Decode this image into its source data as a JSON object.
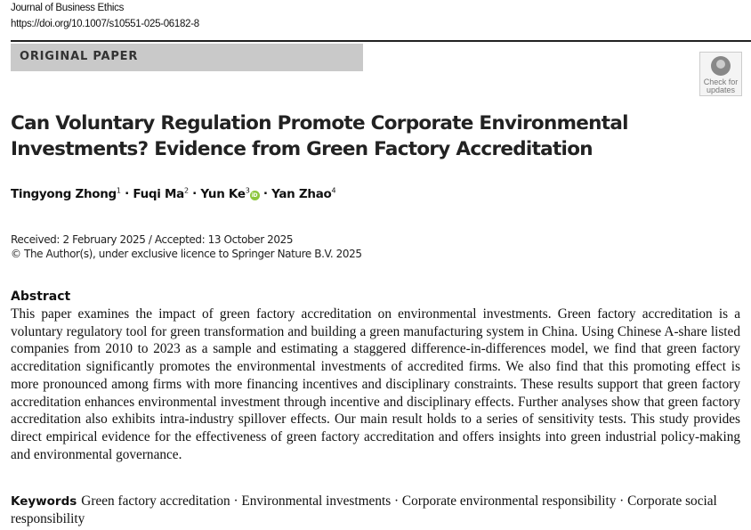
{
  "header": {
    "journal": "Journal of Business Ethics",
    "doi": "https://doi.org/10.1007/s10551-025-06182-8"
  },
  "badge": "ORIGINAL PAPER",
  "check_updates": {
    "line1": "Check for",
    "line2": "updates",
    "icon": "check-for-updates-icon"
  },
  "title_line1": "Can Voluntary Regulation Promote Corporate Environmental",
  "title_line2": "Investments? Evidence from Green Factory Accreditation",
  "authors": [
    {
      "name": "Tingyong Zhong",
      "aff": "1"
    },
    {
      "name": "Fuqi Ma",
      "aff": "2"
    },
    {
      "name": "Yun Ke",
      "aff": "3"
    },
    {
      "name": "Yan Zhao",
      "aff": "4"
    }
  ],
  "orcid_label": "iD",
  "dates": "Received: 2 February 2025 / Accepted: 13 October 2025",
  "copyright": "© The Author(s), under exclusive licence to Springer Nature B.V. 2025",
  "abstract_heading": "Abstract",
  "abstract": "This paper examines the impact of green factory accreditation on environmental investments. Green factory accreditation is a voluntary regulatory tool for green transformation and building a green manufacturing system in China. Using Chinese A-share listed companies from 2010 to 2023 as a sample and estimating a staggered difference-in-differences model, we find that green factory accreditation significantly promotes the environmental investments of accredited firms. We also find that this promoting effect is more pronounced among firms with more financing incentives and disciplinary constraints. These results support that green factory accreditation enhances environmental investment through incentive and disciplinary effects. Further analyses show that green factory accreditation also exhibits intra-industry spillover effects. Our main result holds to a series of sensitivity tests. This study provides direct empirical evidence for the effectiveness of green factory accreditation and offers insights into green industrial policy-making and environmental governance.",
  "keywords_heading": "Keywords",
  "keywords": "Green factory accreditation · Environmental investments · Corporate environmental responsibility · Corporate social responsibility"
}
